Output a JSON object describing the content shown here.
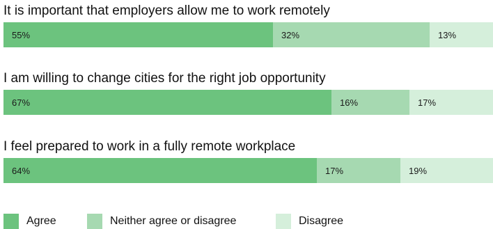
{
  "chart_data": {
    "type": "bar",
    "orientation": "horizontal",
    "stacked": true,
    "percent": true,
    "categories": [
      "It is important that employers allow me to work remotely",
      "I am willing to change cities for the right job opportunity",
      "I feel prepared to work in a fully remote workplace"
    ],
    "series": [
      {
        "name": "Agree",
        "color": "#6cc37e",
        "values": [
          55,
          67,
          64
        ],
        "labels": [
          "55%",
          "67%",
          "64%"
        ]
      },
      {
        "name": "Neither agree or disagree",
        "color": "#a6d9b1",
        "values": [
          32,
          16,
          17
        ],
        "labels": [
          "32%",
          "16%",
          "17%"
        ]
      },
      {
        "name": "Disagree",
        "color": "#d5efdb",
        "values": [
          13,
          17,
          19
        ],
        "labels": [
          "13%",
          "17%",
          "19%"
        ]
      }
    ],
    "legend_position": "bottom",
    "grid": false
  }
}
